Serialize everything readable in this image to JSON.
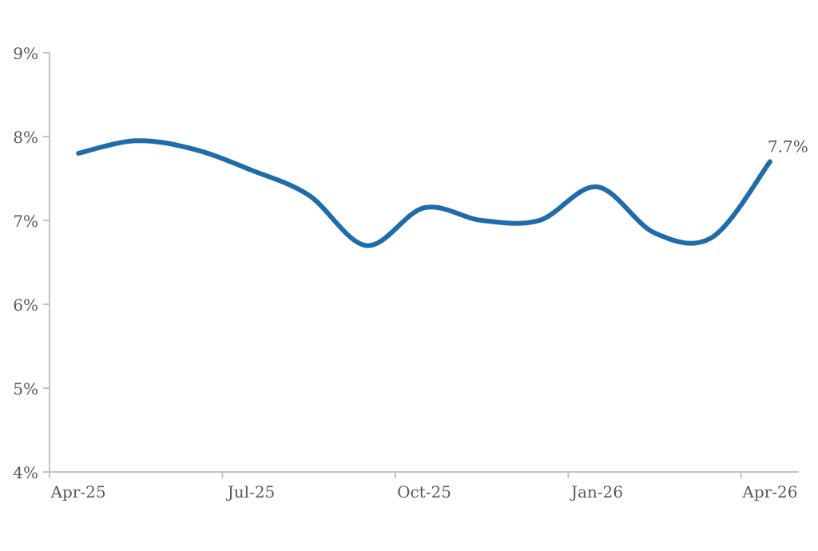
{
  "chart_data": {
    "type": "line",
    "title": "",
    "xlabel": "",
    "ylabel": "",
    "x": [
      "Apr-25",
      "May-25",
      "Jun-25",
      "Jul-25",
      "Aug-25",
      "Sep-25",
      "Oct-25",
      "Nov-25",
      "Dec-25",
      "Jan-26",
      "Feb-26",
      "Mar-26",
      "Apr-26"
    ],
    "values": [
      7.8,
      7.95,
      7.85,
      7.6,
      7.3,
      6.7,
      7.15,
      7.0,
      7.0,
      7.4,
      6.85,
      6.8,
      7.7
    ],
    "unit": "%",
    "ylim": [
      4,
      9
    ],
    "y_tick_labels": [
      "9%",
      "8%",
      "7%",
      "6%",
      "5%",
      "4%"
    ],
    "x_tick_labels": [
      "Apr-25",
      "Jul-25",
      "Oct-25",
      "Jan-26",
      "Apr-26"
    ],
    "x_tick_step": 3,
    "grid": "off",
    "legend": "none",
    "smooth": true,
    "end_label": "7.7%",
    "colors": {
      "line": "#1f6cab",
      "axis": "#c2c2c2",
      "tick_label": "#595959",
      "end_label": "#595959",
      "background": "#ffffff"
    }
  }
}
